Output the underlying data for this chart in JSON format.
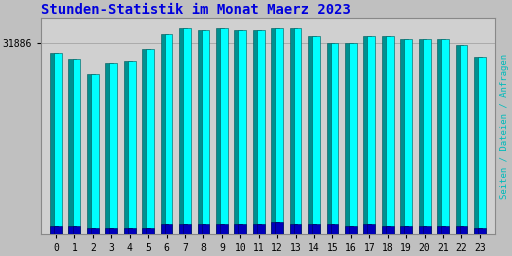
{
  "title": "Stunden-Statistik im Monat Maerz 2023",
  "title_color": "#0000dd",
  "ylabel": "Seiten / Dateien / Anfragen",
  "ylabel_color": "#00bbbb",
  "background_color": "#c0c0c0",
  "plot_bg_color": "#d0d0d0",
  "bar_cyan_color": "#00ffff",
  "bar_teal_color": "#009090",
  "bar_blue_color": "#0000bb",
  "ytick_label": "31886",
  "categories": [
    0,
    1,
    2,
    3,
    4,
    5,
    6,
    7,
    8,
    9,
    10,
    11,
    12,
    13,
    14,
    15,
    16,
    17,
    18,
    19,
    20,
    21,
    22,
    23
  ],
  "values_main": [
    88,
    85,
    78,
    83,
    84,
    90,
    97,
    100,
    99,
    100,
    99,
    99,
    100,
    100,
    96,
    93,
    93,
    96,
    96,
    95,
    95,
    95,
    92,
    86
  ],
  "values_blue": [
    4,
    4,
    3,
    3,
    3,
    3,
    5,
    5,
    5,
    5,
    5,
    5,
    6,
    5,
    5,
    5,
    4,
    5,
    4,
    4,
    4,
    4,
    4,
    3
  ],
  "ylim_min": 0,
  "ylim_max": 105,
  "bar_width": 0.42,
  "title_fontsize": 10,
  "tick_fontsize": 7,
  "ylabel_fontsize": 6.5
}
